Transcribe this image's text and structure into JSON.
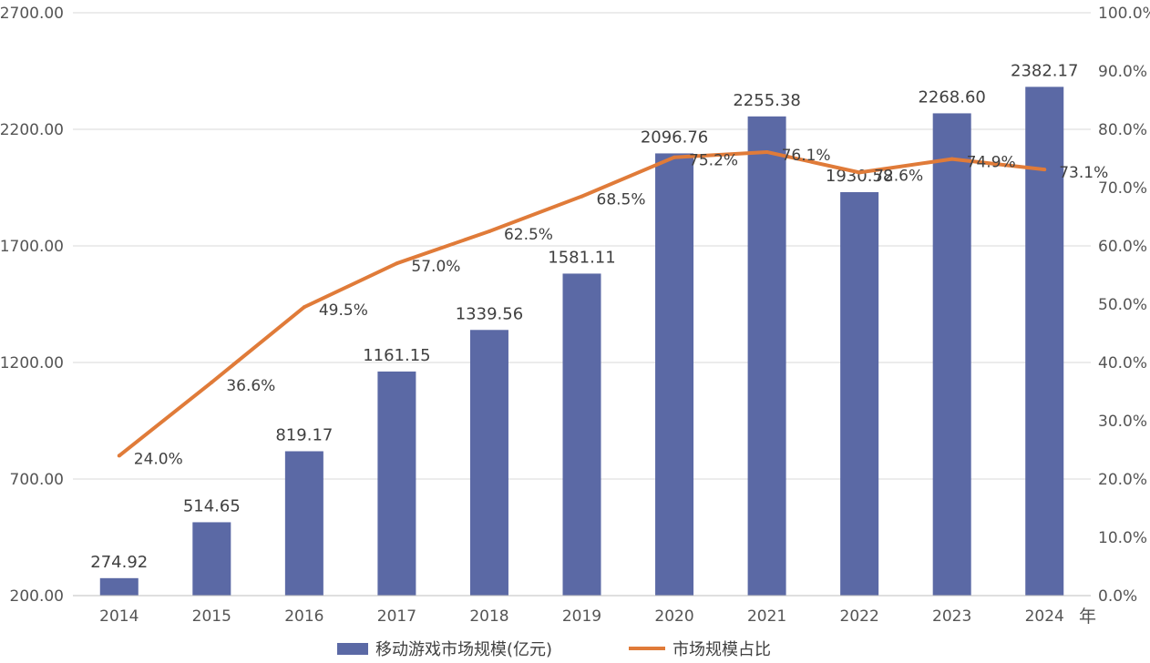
{
  "chart_data": {
    "type": "bar",
    "categories": [
      "2014",
      "2015",
      "2016",
      "2017",
      "2018",
      "2019",
      "2020",
      "2021",
      "2022",
      "2023",
      "2024"
    ],
    "x_unit_label": "年",
    "series": [
      {
        "name": "移动游戏市场规模(亿元)",
        "type": "bar",
        "axis": "left",
        "color": "#5b69a5",
        "values": [
          274.92,
          514.65,
          819.17,
          1161.15,
          1339.56,
          1581.11,
          2096.76,
          2255.38,
          1930.58,
          2268.6,
          2382.17
        ],
        "labels": [
          "274.92",
          "514.65",
          "819.17",
          "1161.15",
          "1339.56",
          "1581.11",
          "2096.76",
          "2255.38",
          "1930.58",
          "2268.60",
          "2382.17"
        ]
      },
      {
        "name": "市场规模占比",
        "type": "line",
        "axis": "right",
        "color": "#e07b39",
        "values": [
          24.0,
          36.6,
          49.5,
          57.0,
          62.5,
          68.5,
          75.2,
          76.1,
          72.6,
          74.9,
          73.1
        ],
        "labels": [
          "24.0%",
          "36.6%",
          "49.5%",
          "57.0%",
          "62.5%",
          "68.5%",
          "75.2%",
          "76.1%",
          "72.6%",
          "74.9%",
          "73.1%"
        ]
      }
    ],
    "y_left": {
      "range": [
        200,
        2700
      ],
      "ticks": [
        200,
        700,
        1200,
        1700,
        2200,
        2700
      ],
      "tick_labels": [
        "200.00",
        "700.00",
        "1200.00",
        "1700.00",
        "2200.00",
        "2700.00"
      ]
    },
    "y_right": {
      "range": [
        0,
        100
      ],
      "ticks": [
        0,
        10,
        20,
        30,
        40,
        50,
        60,
        70,
        80,
        90,
        100
      ],
      "tick_labels": [
        "0.0%",
        "10.0%",
        "20.0%",
        "30.0%",
        "40.0%",
        "50.0%",
        "60.0%",
        "70.0%",
        "80.0%",
        "90.0%",
        "100.0%"
      ]
    },
    "grid": true,
    "legend_position": "bottom-center",
    "gridline_color": "#d9d9d9"
  }
}
